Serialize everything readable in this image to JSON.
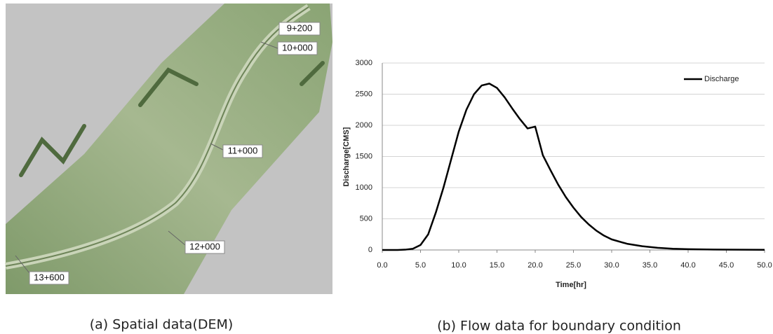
{
  "map": {
    "labels": [
      "9+200",
      "10+000",
      "11+000",
      "12+000",
      "13+600"
    ],
    "caption": "(a)  Spatial data(DEM)"
  },
  "chart_data": {
    "type": "line",
    "caption": "(b)  Flow data for boundary condition",
    "xlabel": "Time[hr]",
    "ylabel": "Discharge[CMS]",
    "x": [
      0,
      2,
      3,
      4,
      5,
      6,
      7,
      8,
      9,
      10,
      11,
      12,
      13,
      14,
      15,
      16,
      17,
      18,
      19,
      20,
      21,
      22,
      23,
      24,
      25,
      26,
      27,
      28,
      29,
      30,
      32,
      34,
      36,
      38,
      40,
      45,
      50
    ],
    "series": [
      {
        "name": "Discharge",
        "color": "#000000",
        "values": [
          0,
          0,
          5,
          20,
          80,
          250,
          600,
          1000,
          1450,
          1900,
          2250,
          2500,
          2640,
          2670,
          2600,
          2450,
          2270,
          2100,
          1950,
          1980,
          1520,
          1280,
          1050,
          850,
          680,
          530,
          410,
          310,
          230,
          170,
          100,
          60,
          35,
          20,
          12,
          5,
          3
        ]
      }
    ],
    "xlim": [
      0,
      50
    ],
    "xticks": [
      {
        "value": 0,
        "label": "0.0"
      },
      {
        "value": 5,
        "label": "5.0"
      },
      {
        "value": 10,
        "label": "10.0"
      },
      {
        "value": 15,
        "label": "15.0"
      },
      {
        "value": 20,
        "label": "20.0"
      },
      {
        "value": 25,
        "label": "25.0"
      },
      {
        "value": 30,
        "label": "30.0"
      },
      {
        "value": 35,
        "label": "35.0"
      },
      {
        "value": 40,
        "label": "40.0"
      },
      {
        "value": 45,
        "label": "45.0"
      },
      {
        "value": 50,
        "label": "50.0"
      }
    ],
    "ylim": [
      0,
      3000
    ],
    "yticks": [
      0,
      500,
      1000,
      1500,
      2000,
      2500,
      3000
    ],
    "grid": true,
    "legend": "upper right"
  }
}
